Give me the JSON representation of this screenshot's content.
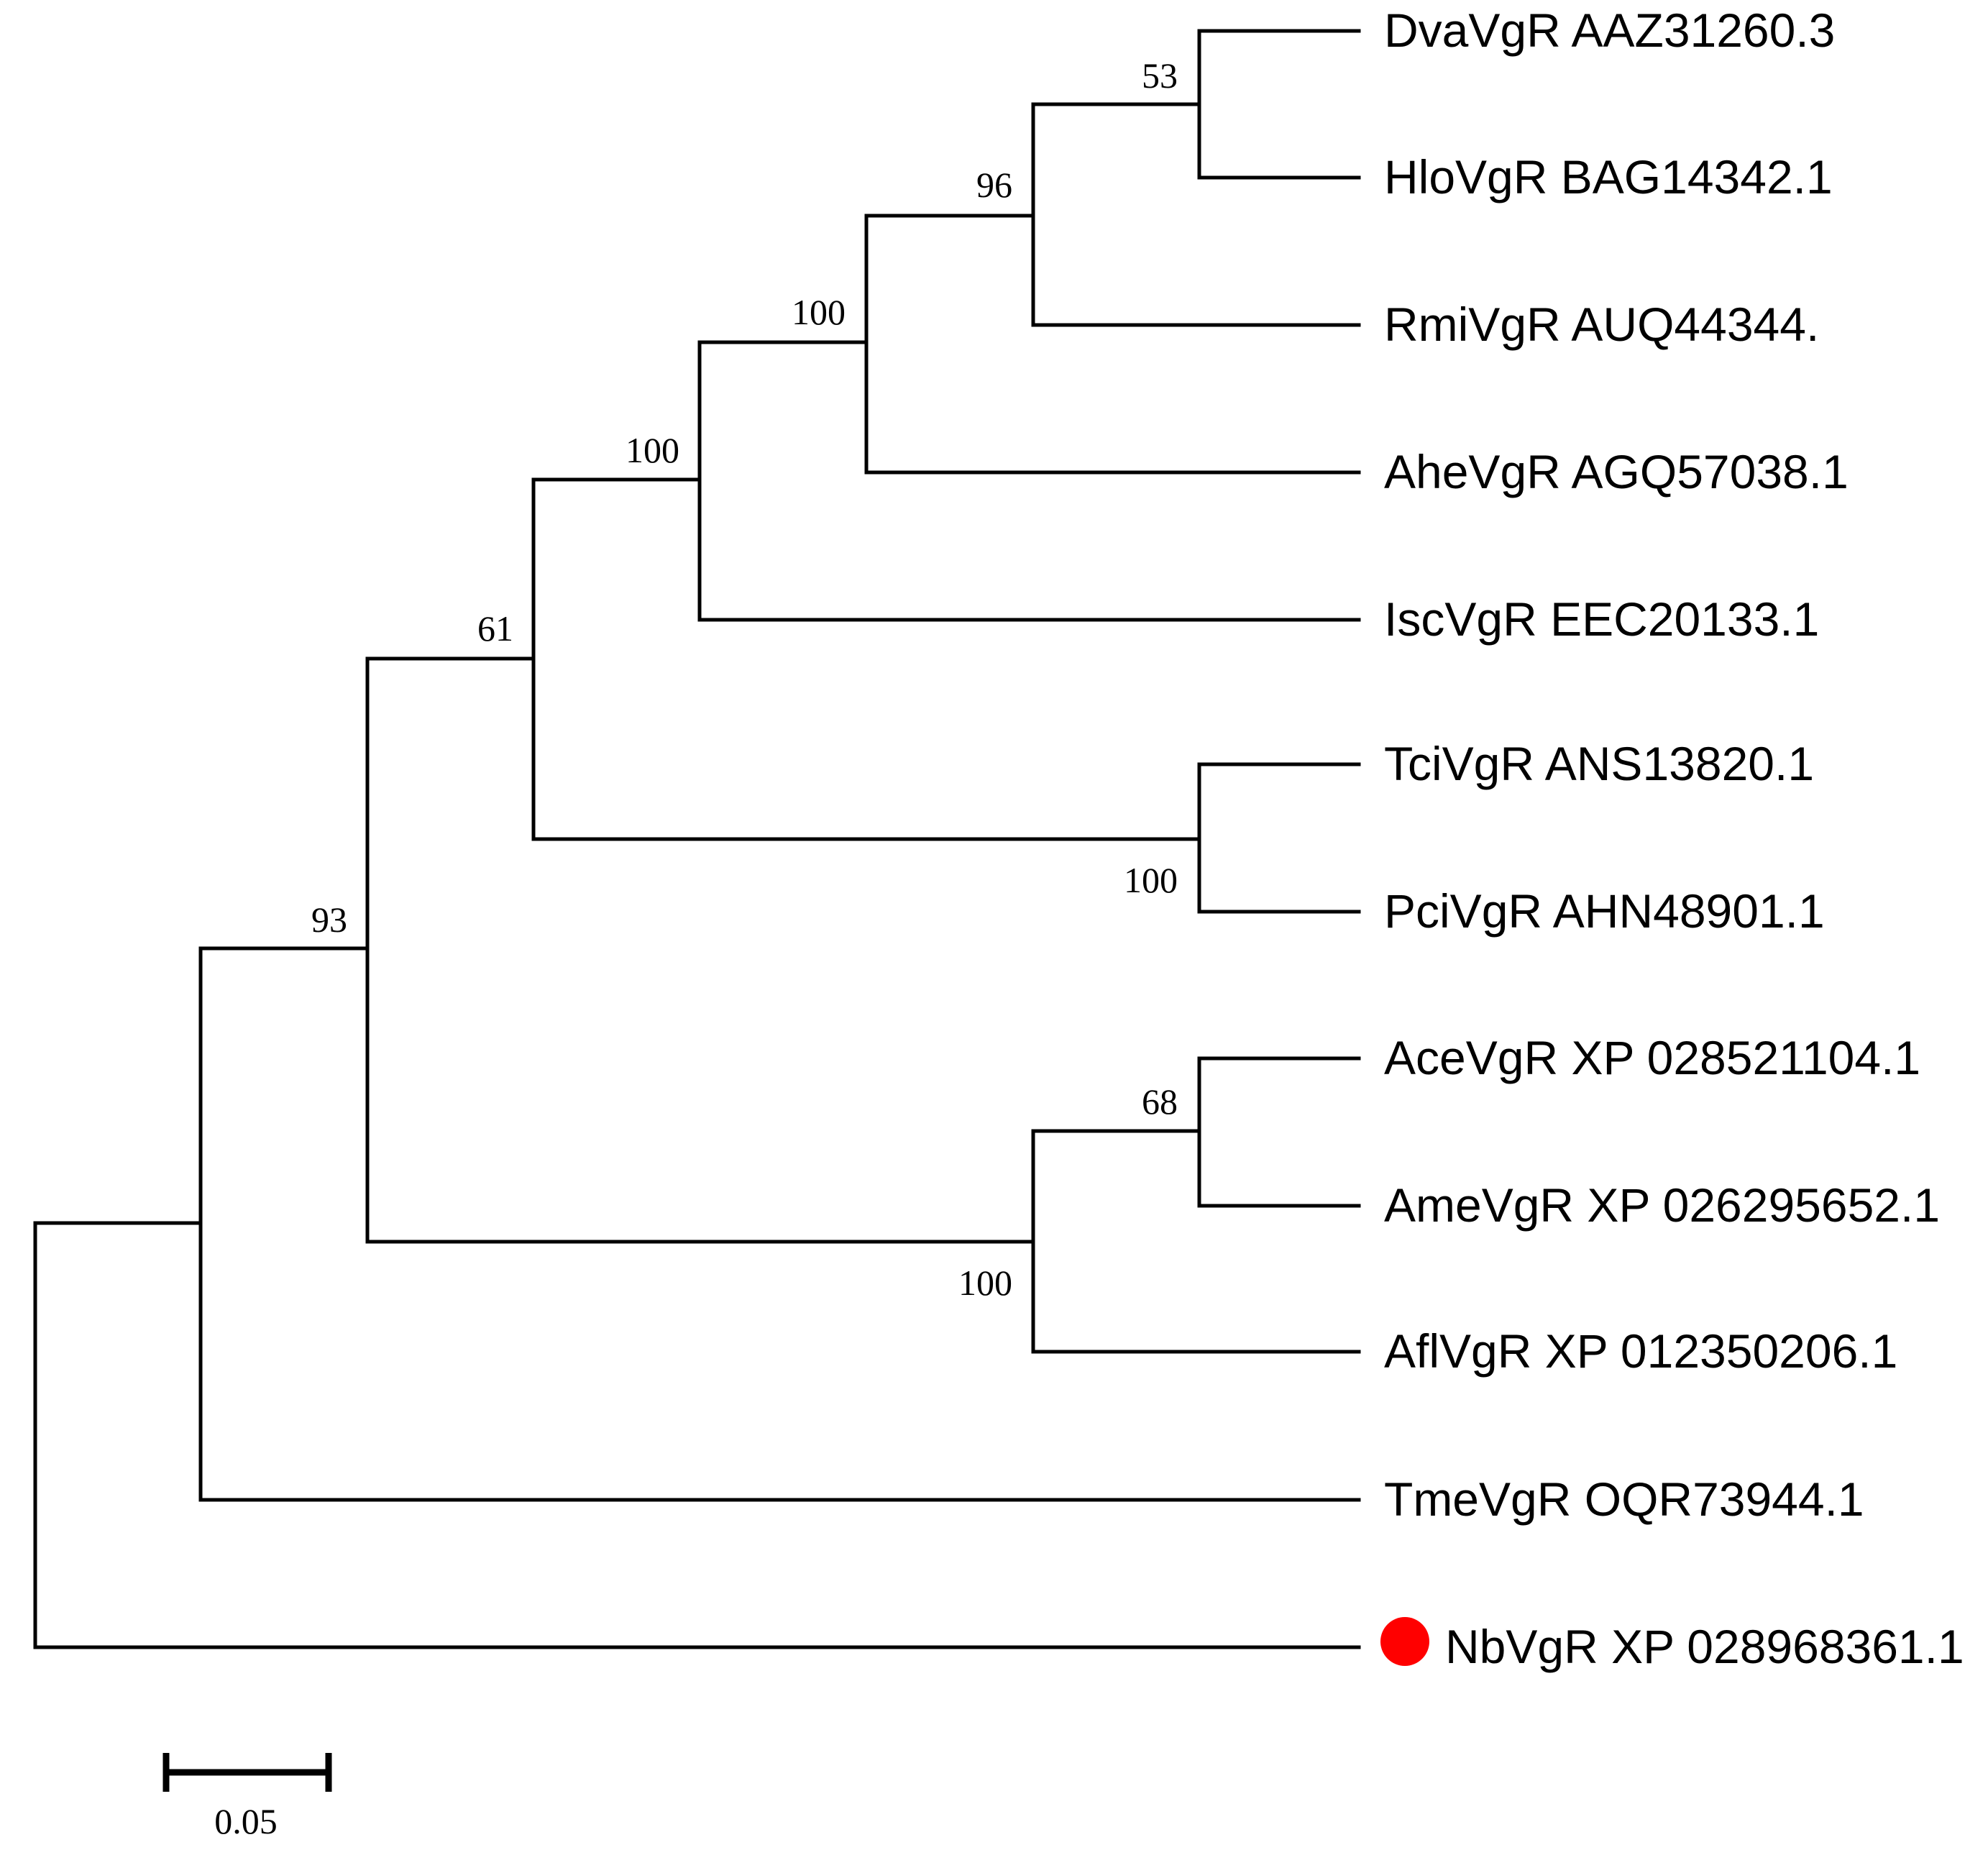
{
  "taxa": [
    {
      "label": "DvaVgR AAZ31260.3"
    },
    {
      "label": "HloVgR BAG14342.1"
    },
    {
      "label": "RmiVgR AUQ44344."
    },
    {
      "label": "AheVgR AGQ57038.1"
    },
    {
      "label": "IscVgR EEC20133.1"
    },
    {
      "label": "TciVgR ANS13820.1"
    },
    {
      "label": "PciVgR AHN48901.1"
    },
    {
      "label": "AceVgR XP 028521104.1"
    },
    {
      "label": "AmeVgR XP 026295652.1"
    },
    {
      "label": "AflVgR XP 012350206.1"
    },
    {
      "label": "TmeVgR OQR73944.1"
    },
    {
      "label": "NbVgR XP 028968361.1",
      "marker": "red-circle",
      "marker_color": "#ff0000"
    }
  ],
  "bootstrap": [
    {
      "value": "53",
      "clade": "Dva+Hlo"
    },
    {
      "value": "96",
      "clade": "Dva+Hlo+Rmi"
    },
    {
      "value": "100",
      "clade": "Dva+Hlo+Rmi+Ahe"
    },
    {
      "value": "100",
      "clade": "Dva..Isc"
    },
    {
      "value": "61",
      "clade": "Dva..Pci"
    },
    {
      "value": "100",
      "clade": "Tci+Pci"
    },
    {
      "value": "93",
      "clade": "Dva..Afl"
    },
    {
      "value": "68",
      "clade": "Ace+Ame"
    },
    {
      "value": "100",
      "clade": "Ace+Ame+Afl"
    }
  ],
  "scale_bar": {
    "label": "0.05",
    "value": 0.05
  },
  "colors": {
    "lines": "#000000",
    "highlight_marker": "#ff0000"
  }
}
